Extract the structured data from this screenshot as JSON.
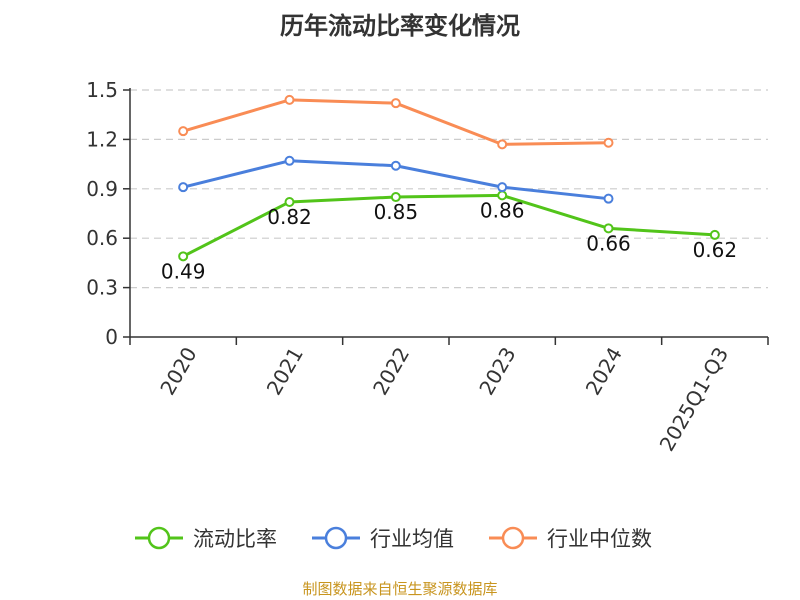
{
  "title": "历年流动比率变化情况",
  "footer": "制图数据来自恒生聚源数据库",
  "chart_data": {
    "type": "line",
    "title": "历年流动比率变化情况",
    "categories": [
      "2020",
      "2021",
      "2022",
      "2023",
      "2024",
      "2025Q1-Q3"
    ],
    "ylim": [
      0,
      1.5
    ],
    "yticks": [
      "0",
      "0.3",
      "0.6",
      "0.9",
      "1.2",
      "1.5"
    ],
    "grid": true,
    "legend_position": "bottom",
    "series": [
      {
        "name": "流动比率",
        "color": "#52c41a",
        "values": [
          0.49,
          0.82,
          0.85,
          0.86,
          0.66,
          0.62
        ],
        "labels": [
          "0.49",
          "0.82",
          "0.85",
          "0.86",
          "0.66",
          "0.62"
        ]
      },
      {
        "name": "行业均值",
        "color": "#4a7fdc",
        "values": [
          0.91,
          1.07,
          1.04,
          0.91,
          0.84,
          null
        ]
      },
      {
        "name": "行业中位数",
        "color": "#f98c55",
        "values": [
          1.25,
          1.44,
          1.42,
          1.17,
          1.18,
          null
        ]
      }
    ]
  }
}
